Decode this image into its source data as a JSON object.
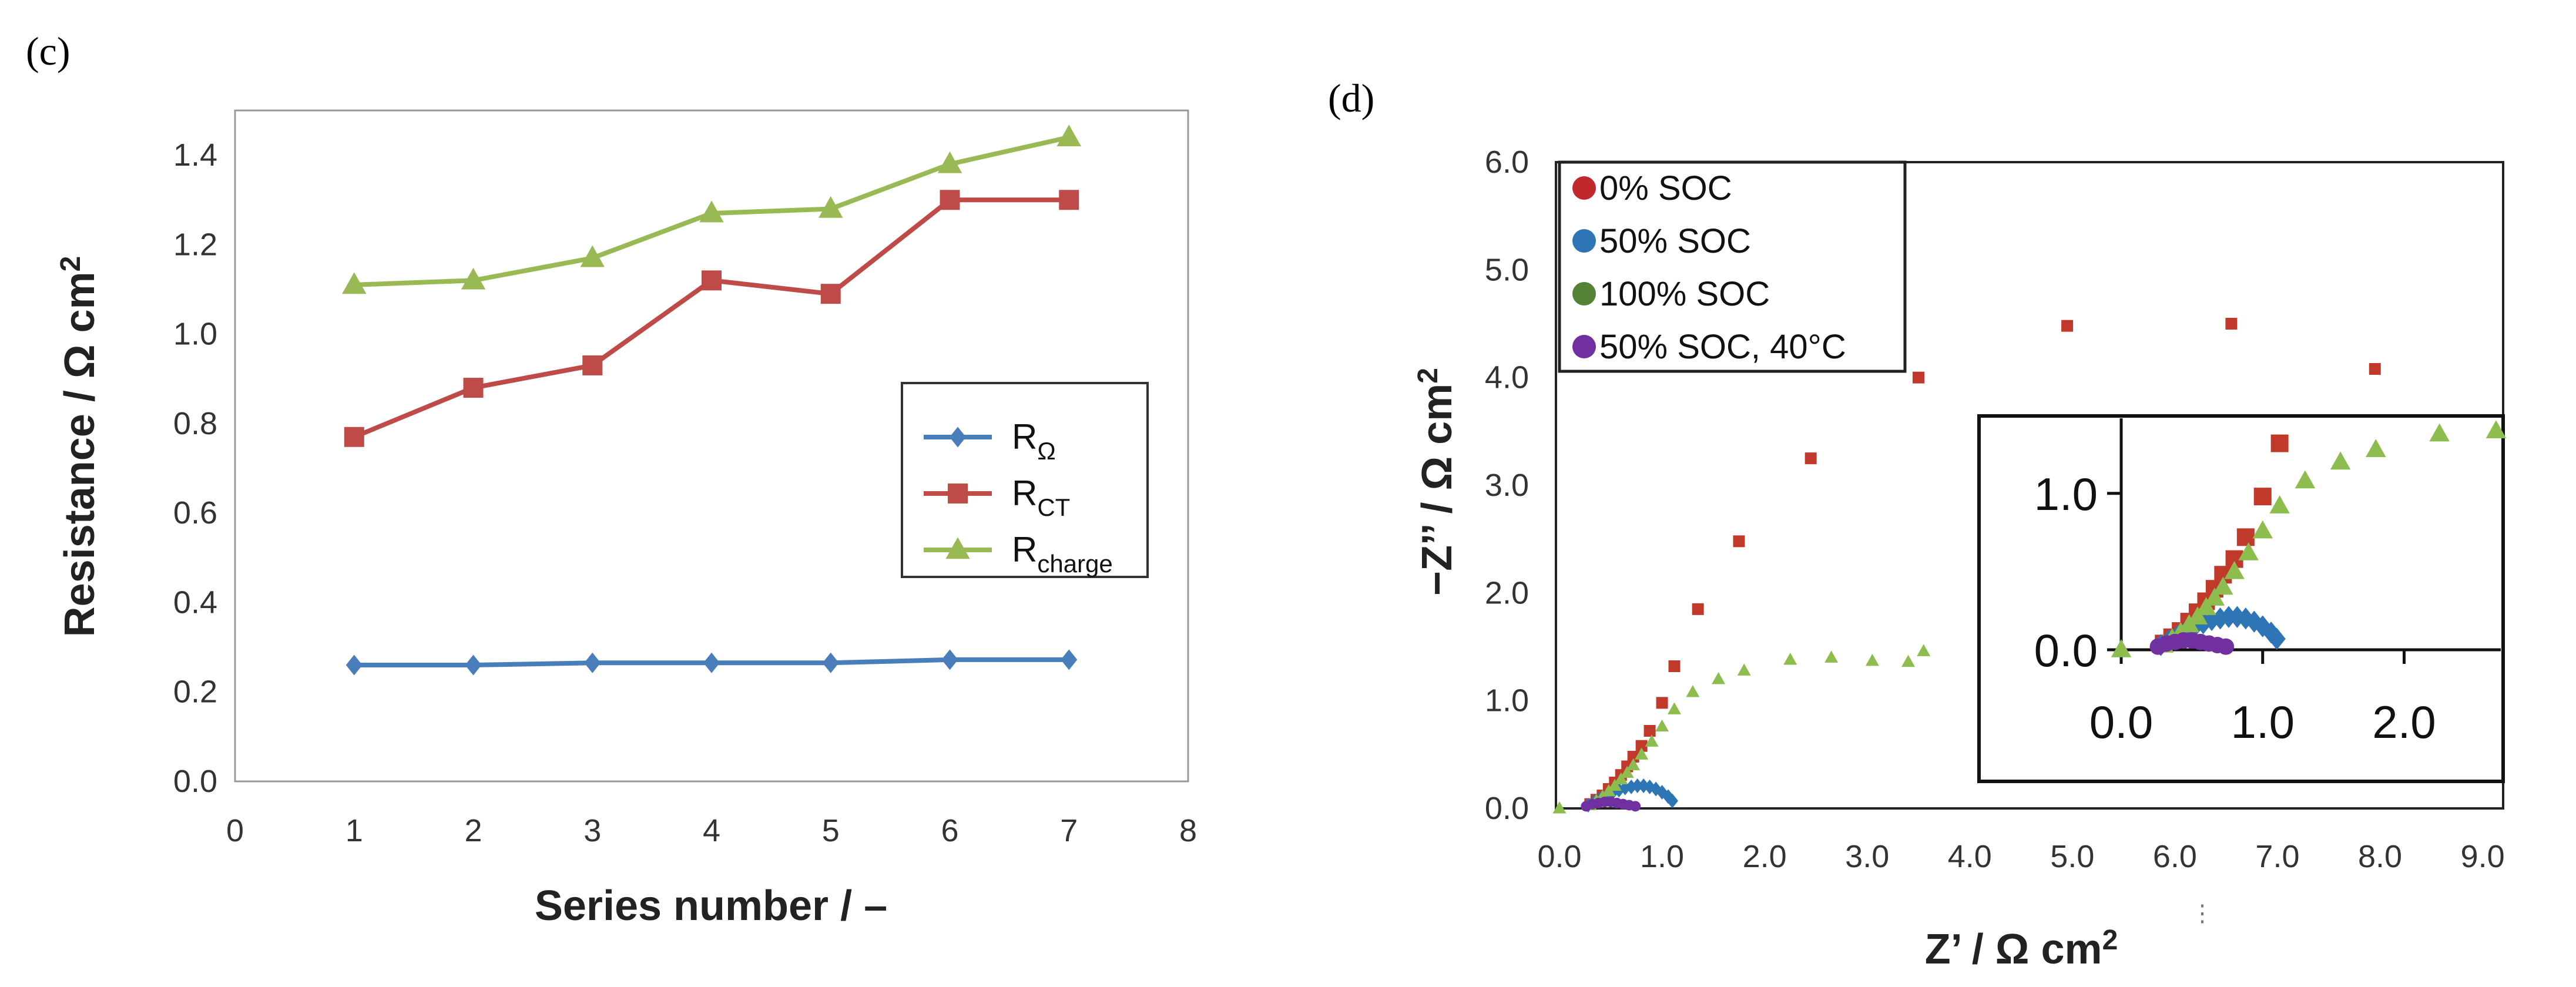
{
  "chart_data": [
    {
      "panel": "(c)",
      "type": "line",
      "title": "",
      "xlabel": "Series number / –",
      "ylabel": "Resistance / Ω cm²",
      "xlim": [
        0,
        8
      ],
      "ylim": [
        0.0,
        1.5
      ],
      "xticks": [
        "0",
        "1",
        "2",
        "3",
        "4",
        "5",
        "6",
        "7",
        "8"
      ],
      "yticks": [
        "0.0",
        "0.2",
        "0.4",
        "0.6",
        "0.8",
        "1.0",
        "1.2",
        "1.4"
      ],
      "grid": false,
      "legend_position": "center-right",
      "x": [
        1,
        2,
        3,
        4,
        5,
        6,
        7
      ],
      "series": [
        {
          "name": "RΩ",
          "label_main": "R",
          "label_sub": "Ω",
          "color": "#4a7ebb",
          "marker": "diamond",
          "values": [
            0.26,
            0.26,
            0.265,
            0.265,
            0.265,
            0.272,
            0.272
          ]
        },
        {
          "name": "RCT",
          "label_main": "R",
          "label_sub": "CT",
          "color": "#be4b48",
          "marker": "square",
          "values": [
            0.77,
            0.88,
            0.93,
            1.12,
            1.09,
            1.3,
            1.3
          ]
        },
        {
          "name": "Rcharge",
          "label_main": "R",
          "label_sub": "charge",
          "color": "#98b954",
          "marker": "triangle",
          "values": [
            1.11,
            1.12,
            1.17,
            1.27,
            1.28,
            1.38,
            1.44
          ]
        }
      ]
    },
    {
      "panel": "(d)",
      "type": "scatter",
      "title": "",
      "xlabel": "Z’ / Ω cm²",
      "ylabel": "−Z’’ / Ω cm²",
      "xlim": [
        0,
        9.2
      ],
      "ylim": [
        0,
        6.0
      ],
      "xticks": [
        "0.0",
        "1.0",
        "2.0",
        "3.0",
        "4.0",
        "5.0",
        "6.0",
        "7.0",
        "8.0",
        "9.0"
      ],
      "yticks": [
        "0.0",
        "1.0",
        "2.0",
        "3.0",
        "4.0",
        "5.0",
        "6.0"
      ],
      "grid": false,
      "legend_position": "top-left",
      "legend": [
        {
          "name": "0% SOC",
          "color": "#c0292b"
        },
        {
          "name": "50% SOC",
          "color": "#2e75b6"
        },
        {
          "name": "100% SOC",
          "color": "#548235"
        },
        {
          "name": "50% SOC, 40°C",
          "color": "#7030a0"
        }
      ],
      "series": [
        {
          "name": "0% SOC (marker)",
          "color": "#c0392b",
          "marker": "square",
          "x": [
            0.3,
            0.36,
            0.42,
            0.48,
            0.54,
            0.6,
            0.66,
            0.72,
            0.8,
            0.88,
            1.0,
            1.12,
            1.35,
            1.75,
            2.45,
            3.5,
            4.95,
            6.55,
            7.95
          ],
          "y": [
            0.04,
            0.08,
            0.12,
            0.18,
            0.24,
            0.31,
            0.39,
            0.48,
            0.58,
            0.72,
            0.98,
            1.32,
            1.85,
            2.48,
            3.25,
            4.0,
            4.48,
            4.5,
            4.08
          ]
        },
        {
          "name": "50% SOC (marker)",
          "color": "#2e75b6",
          "marker": "diamond",
          "x": [
            0.28,
            0.34,
            0.4,
            0.46,
            0.52,
            0.58,
            0.64,
            0.7,
            0.76,
            0.82,
            0.88,
            0.94,
            1.0,
            1.06,
            1.1
          ],
          "y": [
            0.03,
            0.06,
            0.09,
            0.12,
            0.15,
            0.17,
            0.19,
            0.2,
            0.21,
            0.21,
            0.2,
            0.18,
            0.15,
            0.11,
            0.07
          ]
        },
        {
          "name": "100% SOC (marker)",
          "color": "#8dbd4e",
          "marker": "triangle",
          "x": [
            0.0,
            0.3,
            0.36,
            0.42,
            0.48,
            0.54,
            0.6,
            0.66,
            0.72,
            0.8,
            0.9,
            1.0,
            1.12,
            1.3,
            1.55,
            1.8,
            2.25,
            2.65,
            3.05,
            3.4,
            3.55
          ],
          "y": [
            0.0,
            0.03,
            0.07,
            0.11,
            0.16,
            0.21,
            0.27,
            0.33,
            0.4,
            0.5,
            0.62,
            0.76,
            0.92,
            1.08,
            1.2,
            1.28,
            1.38,
            1.4,
            1.37,
            1.36,
            1.46
          ]
        },
        {
          "name": "50% SOC, 40°C (marker)",
          "color": "#7030a0",
          "marker": "circle",
          "x": [
            0.26,
            0.32,
            0.38,
            0.44,
            0.5,
            0.56,
            0.62,
            0.68,
            0.74
          ],
          "y": [
            0.02,
            0.04,
            0.05,
            0.06,
            0.06,
            0.05,
            0.04,
            0.03,
            0.02
          ]
        }
      ],
      "inset": {
        "xlim": [
          0.0,
          2.7
        ],
        "ylim": [
          0.0,
          1.45
        ],
        "xticks": [
          "0.0",
          "1.0",
          "2.0"
        ],
        "yticks": [
          "0.0",
          "1.0"
        ],
        "series": [
          {
            "name": "0% SOC",
            "color": "#c0392b",
            "marker": "square",
            "x": [
              0.3,
              0.36,
              0.42,
              0.48,
              0.54,
              0.6,
              0.66,
              0.72,
              0.8,
              0.88,
              1.0,
              1.12
            ],
            "y": [
              0.04,
              0.08,
              0.12,
              0.18,
              0.24,
              0.31,
              0.39,
              0.48,
              0.58,
              0.72,
              0.98,
              1.32
            ]
          },
          {
            "name": "50% SOC",
            "color": "#2e75b6",
            "marker": "diamond",
            "x": [
              0.28,
              0.34,
              0.4,
              0.46,
              0.52,
              0.58,
              0.64,
              0.7,
              0.76,
              0.82,
              0.88,
              0.94,
              1.0,
              1.06,
              1.1
            ],
            "y": [
              0.03,
              0.06,
              0.09,
              0.12,
              0.15,
              0.17,
              0.19,
              0.2,
              0.21,
              0.21,
              0.2,
              0.18,
              0.15,
              0.11,
              0.07
            ]
          },
          {
            "name": "100% SOC",
            "color": "#8dbd4e",
            "marker": "triangle",
            "x": [
              0.0,
              0.3,
              0.36,
              0.42,
              0.48,
              0.54,
              0.6,
              0.66,
              0.72,
              0.8,
              0.9,
              1.0,
              1.12,
              1.3,
              1.55,
              1.8,
              2.25,
              2.65
            ],
            "y": [
              0.0,
              0.03,
              0.07,
              0.11,
              0.16,
              0.21,
              0.27,
              0.33,
              0.4,
              0.5,
              0.62,
              0.76,
              0.92,
              1.08,
              1.2,
              1.28,
              1.38,
              1.4
            ]
          },
          {
            "name": "50% SOC, 40°C",
            "color": "#7030a0",
            "marker": "circle",
            "x": [
              0.26,
              0.32,
              0.38,
              0.44,
              0.5,
              0.56,
              0.62,
              0.68,
              0.74
            ],
            "y": [
              0.02,
              0.04,
              0.05,
              0.06,
              0.06,
              0.05,
              0.04,
              0.03,
              0.02
            ]
          }
        ]
      }
    }
  ]
}
